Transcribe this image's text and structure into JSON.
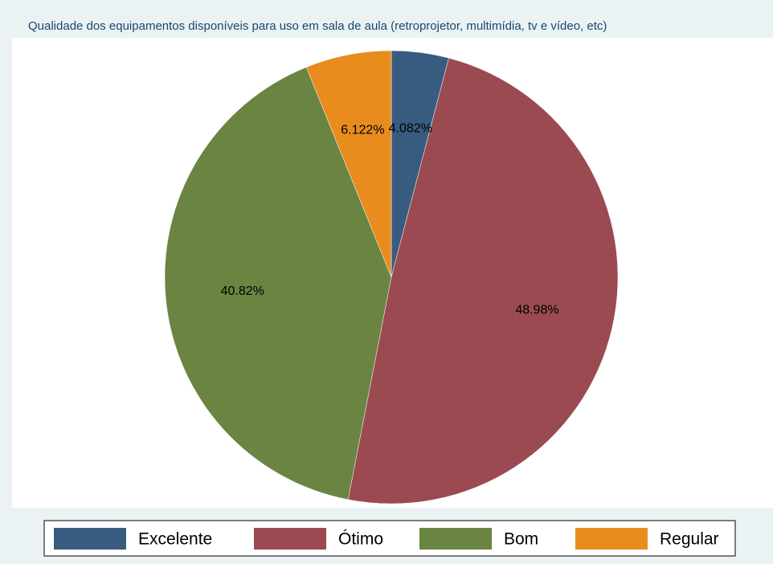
{
  "chart_data": {
    "type": "pie",
    "title": "Qualidade dos equipamentos disponíveis para uso em sala de aula (retroprojetor, multimídia, tv e vídeo, etc)",
    "categories": [
      "Excelente",
      "Ótimo",
      "Bom",
      "Regular"
    ],
    "values": [
      4.082,
      48.98,
      40.82,
      6.122
    ],
    "value_labels": [
      "4.082%",
      "48.98%",
      "40.82%",
      "6.122%"
    ],
    "colors": [
      "#385c80",
      "#9b4a51",
      "#6a8442",
      "#e88c1e"
    ],
    "legend": "bottom"
  }
}
